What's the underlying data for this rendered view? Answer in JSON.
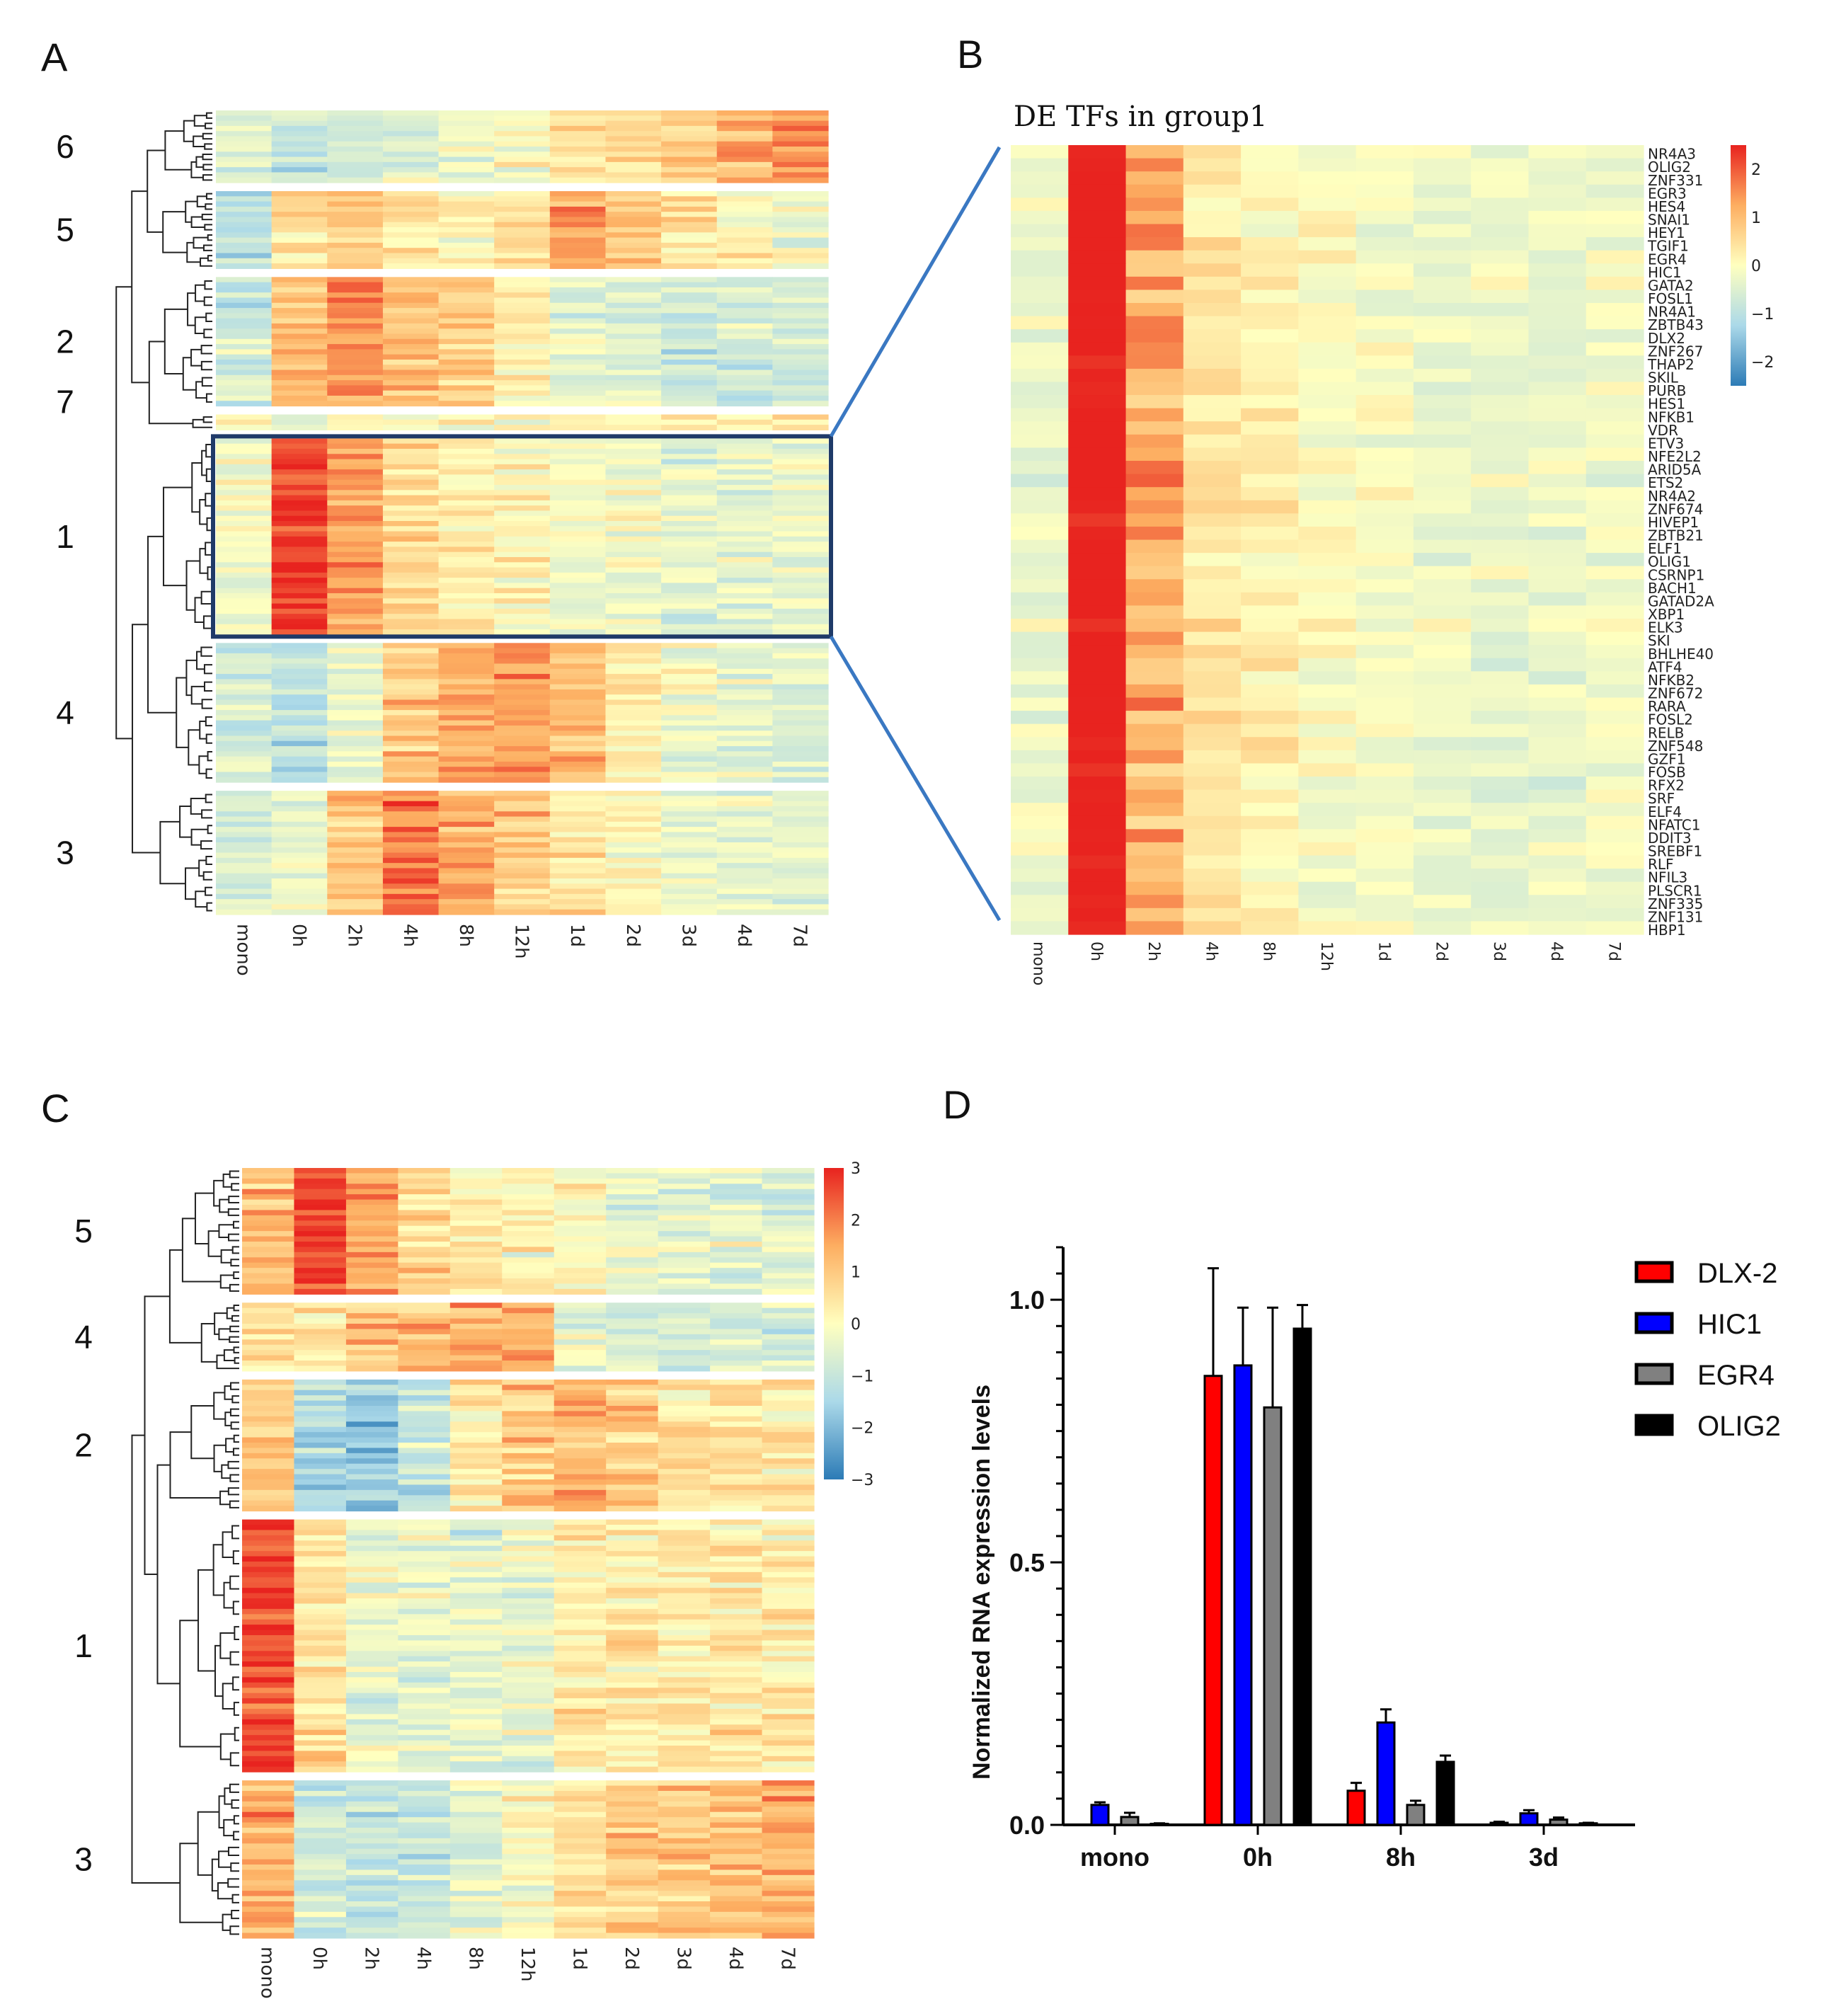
{
  "panels": {
    "a_letter": "A",
    "b_letter": "B",
    "c_letter": "C",
    "d_letter": "D"
  },
  "colors": {
    "heat_low": "#2c7bb6",
    "heat_mid": "#ffffbf",
    "heat_high": "#e8231f",
    "box_outline": "#1f3a68",
    "zoom_lines": "#3a78c2"
  },
  "chart_data": [
    {
      "id": "A",
      "type": "heatmap",
      "title": "",
      "columns": [
        "mono",
        "0h",
        "2h",
        "4h",
        "8h",
        "12h",
        "1d",
        "2d",
        "3d",
        "4d",
        "7d"
      ],
      "clusters": [
        {
          "label": "6",
          "rows": 14,
          "profile": [
            -0.6,
            -1.0,
            -0.8,
            -0.7,
            -0.3,
            0.0,
            0.4,
            0.6,
            0.9,
            1.3,
            2.0
          ]
        },
        {
          "label": "5",
          "rows": 15,
          "profile": [
            -1.2,
            0.6,
            1.0,
            0.4,
            0.3,
            0.6,
            1.4,
            1.0,
            0.6,
            0.1,
            -0.2
          ]
        },
        {
          "label": "2",
          "rows": 25,
          "profile": [
            -0.8,
            1.2,
            1.8,
            1.2,
            0.9,
            0.2,
            -0.4,
            -0.6,
            -0.8,
            -0.8,
            -0.8
          ]
        },
        {
          "label": "7",
          "rows": 3,
          "profile": [
            -0.3,
            -0.2,
            0.0,
            0.0,
            0.1,
            0.0,
            0.1,
            0.2,
            0.3,
            0.5,
            0.6
          ]
        },
        {
          "label": "1",
          "rows": 38,
          "profile": [
            -0.2,
            2.6,
            1.6,
            0.7,
            0.3,
            0.1,
            -0.2,
            -0.3,
            -0.5,
            -0.5,
            -0.4
          ]
        },
        {
          "label": "4",
          "rows": 27,
          "profile": [
            -1.0,
            -1.2,
            -0.3,
            1.0,
            1.5,
            1.7,
            1.2,
            0.3,
            -0.2,
            -0.4,
            -0.6
          ]
        },
        {
          "label": "3",
          "rows": 24,
          "profile": [
            -0.6,
            -0.4,
            1.0,
            2.0,
            1.5,
            1.0,
            0.5,
            0.1,
            -0.3,
            -0.4,
            -0.5
          ]
        }
      ],
      "highlighted_cluster": "1"
    },
    {
      "id": "B",
      "type": "heatmap",
      "title": "DE TFs in group1",
      "columns": [
        "mono",
        "0h",
        "2h",
        "4h",
        "8h",
        "12h",
        "1d",
        "2d",
        "3d",
        "4d",
        "7d"
      ],
      "genes": [
        "NR4A3",
        "OLIG2",
        "ZNF331",
        "EGR3",
        "HES4",
        "SNAI1",
        "HEY1",
        "TGIF1",
        "EGR4",
        "HIC1",
        "GATA2",
        "FOSL1",
        "NR4A1",
        "ZBTB43",
        "DLX2",
        "ZNF267",
        "THAP2",
        "SKIL",
        "PURB",
        "HES1",
        "NFKB1",
        "VDR",
        "ETV3",
        "NFE2L2",
        "ARID5A",
        "ETS2",
        "NR4A2",
        "ZNF674",
        "HIVEP1",
        "ZBTB21",
        "ELF1",
        "OLIG1",
        "CSRNP1",
        "BACH1",
        "GATAD2A",
        "XBP1",
        "ELK3",
        "SKI",
        "BHLHE40",
        "ATF4",
        "NFKB2",
        "ZNF672",
        "RARA",
        "FOSL2",
        "RELB",
        "ZNF548",
        "GZF1",
        "FOSB",
        "RFX2",
        "SRF",
        "ELF4",
        "NFATC1",
        "DDIT3",
        "SREBF1",
        "RLF",
        "NFIL3",
        "PLSCR1",
        "ZNF335",
        "ZNF131",
        "HBP1"
      ],
      "profile": [
        -0.3,
        2.6,
        1.3,
        0.4,
        0.2,
        0.0,
        -0.1,
        -0.2,
        -0.3,
        -0.3,
        -0.2
      ],
      "colorbar": {
        "ticks": [
          2,
          1,
          0,
          -1,
          -2
        ],
        "labels": [
          "2",
          "1",
          "0",
          "−1",
          "−2"
        ],
        "range": [
          -2.5,
          2.5
        ]
      }
    },
    {
      "id": "C",
      "type": "heatmap",
      "title": "",
      "columns": [
        "mono",
        "0h",
        "2h",
        "4h",
        "8h",
        "12h",
        "1d",
        "2d",
        "3d",
        "4d",
        "7d"
      ],
      "clusters": [
        {
          "label": "5",
          "rows": 24,
          "profile": [
            1.2,
            2.6,
            1.5,
            0.6,
            0.3,
            0.2,
            0.0,
            -0.3,
            -0.5,
            -0.6,
            -0.7
          ]
        },
        {
          "label": "4",
          "rows": 13,
          "profile": [
            0.6,
            0.4,
            1.0,
            1.3,
            1.4,
            1.3,
            -0.3,
            -0.6,
            -0.8,
            -0.8,
            -0.8
          ]
        },
        {
          "label": "2",
          "rows": 25,
          "profile": [
            1.0,
            -1.4,
            -1.8,
            -1.0,
            0.4,
            1.0,
            1.4,
            1.0,
            0.6,
            0.5,
            0.4
          ]
        },
        {
          "label": "1",
          "rows": 48,
          "profile": [
            2.6,
            0.5,
            -0.3,
            -0.5,
            -0.5,
            -0.3,
            0.3,
            0.4,
            0.4,
            0.4,
            0.4
          ]
        },
        {
          "label": "3",
          "rows": 30,
          "profile": [
            1.4,
            -0.8,
            -1.1,
            -0.9,
            -0.4,
            0.0,
            0.6,
            0.9,
            1.0,
            1.1,
            1.3
          ]
        }
      ],
      "colorbar": {
        "ticks": [
          3,
          2,
          1,
          0,
          -1,
          -2,
          -3
        ],
        "labels": [
          "3",
          "2",
          "1",
          "0",
          "−1",
          "−2",
          "−3"
        ],
        "range": [
          -3,
          3
        ]
      }
    },
    {
      "id": "D",
      "type": "bar",
      "title": "",
      "categories": [
        "mono",
        "0h",
        "8h",
        "3d"
      ],
      "ylabel": "Normalized RNA expression levels",
      "xlabel": "",
      "ylim": [
        0,
        1.1
      ],
      "yticks": [
        0.0,
        0.5,
        1.0
      ],
      "ytick_labels": [
        "0.0",
        "0.5",
        "1.0"
      ],
      "series": [
        {
          "name": "DLX-2",
          "color": "#ff0000",
          "values": [
            0.0,
            0.855,
            0.065,
            0.004
          ],
          "errors": [
            0.0,
            0.205,
            0.015,
            0.002
          ]
        },
        {
          "name": "HIC1",
          "color": "#0000ff",
          "values": [
            0.038,
            0.875,
            0.195,
            0.022
          ],
          "errors": [
            0.005,
            0.11,
            0.025,
            0.006
          ]
        },
        {
          "name": "EGR4",
          "color": "#808080",
          "values": [
            0.015,
            0.795,
            0.038,
            0.01
          ],
          "errors": [
            0.008,
            0.19,
            0.008,
            0.004
          ]
        },
        {
          "name": "OLIG2",
          "color": "#000000",
          "values": [
            0.002,
            0.945,
            0.12,
            0.003
          ],
          "errors": [
            0.001,
            0.045,
            0.012,
            0.001
          ]
        }
      ]
    }
  ]
}
